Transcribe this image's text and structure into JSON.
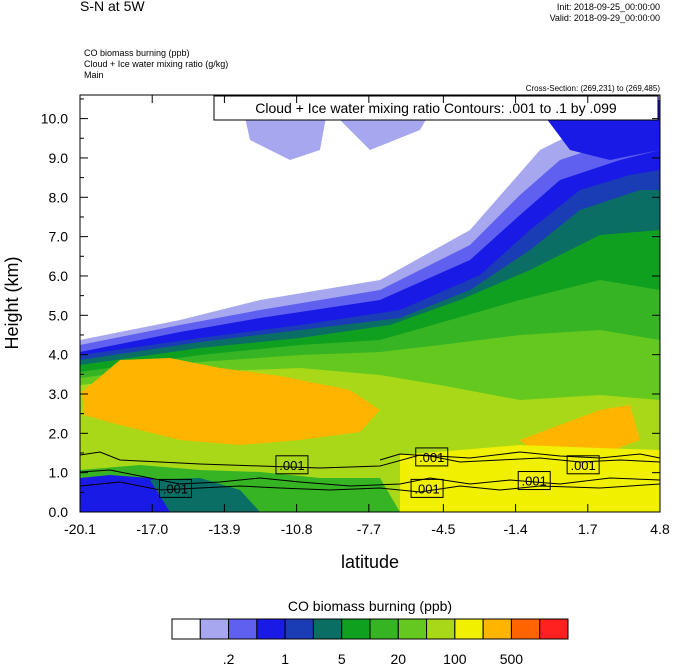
{
  "header": {
    "plot_title": "S-N at 5W",
    "init_line": "Init: 2018-09-25_00:00:00",
    "valid_line": "Valid: 2018-09-29_00:00:00",
    "field_lines": [
      "CO biomass burning   (ppb)",
      "Cloud + Ice water mixing ratio   (g/kg)",
      "Main"
    ],
    "cross_section": "Cross-Section: (269,231) to (269,485)",
    "contour_info": "Cloud + Ice water mixing ratio Contours: .001 to .1 by .099"
  },
  "chart_data": {
    "type": "heatmap",
    "xlabel": "latitude",
    "ylabel": "Height (km)",
    "x_ticks": [
      "-20.1",
      "-17.0",
      "-13.9",
      "-10.8",
      "-7.7",
      "-4.5",
      "-1.4",
      "1.7",
      "4.8"
    ],
    "y_ticks": [
      "0.0",
      "1.0",
      "2.0",
      "3.0",
      "4.0",
      "5.0",
      "6.0",
      "7.0",
      "8.0",
      "9.0",
      "10.0"
    ],
    "xlim": [
      -20.1,
      4.8
    ],
    "ylim": [
      0.0,
      10.6
    ],
    "colorbar": {
      "title": "CO biomass burning  (ppb)",
      "colors": [
        "#ffffff",
        "#a7a7f0",
        "#5f5ff0",
        "#1a1ae6",
        "#1a3cb4",
        "#0a6e64",
        "#10a020",
        "#36b424",
        "#64c81e",
        "#a8d818",
        "#f0f000",
        "#ffb400",
        "#ff6400",
        "#ff2020"
      ],
      "labels": [
        ".2",
        "1",
        "5",
        "20",
        "100",
        "500"
      ]
    },
    "contour_labels": [
      {
        "text": ".001",
        "lat": -16.0,
        "z": 0.6
      },
      {
        "text": ".001",
        "lat": -11.0,
        "z": 1.2
      },
      {
        "text": ".001",
        "lat": -5.0,
        "z": 1.4
      },
      {
        "text": ".001",
        "lat": -5.2,
        "z": 0.6
      },
      {
        "text": ".001",
        "lat": -0.6,
        "z": 0.8
      },
      {
        "text": ".001",
        "lat": 1.5,
        "z": 1.2
      }
    ]
  }
}
